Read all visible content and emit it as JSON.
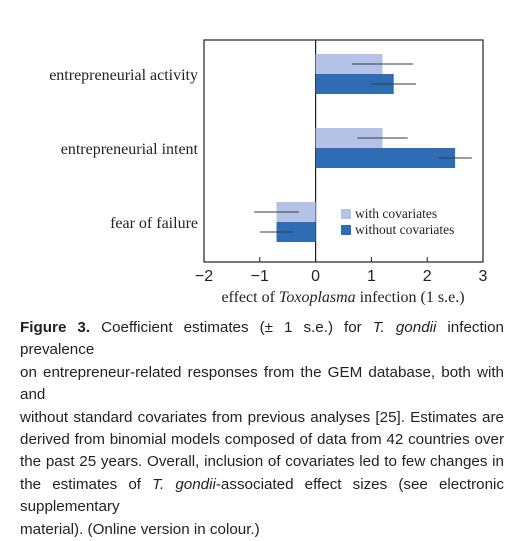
{
  "chart_data": {
    "type": "bar",
    "orientation": "horizontal",
    "categories": [
      "entrepreneurial activity",
      "entrepreneurial intent",
      "fear of failure"
    ],
    "series": [
      {
        "name": "with covariates",
        "color": "#b3c2e6",
        "values": [
          1.2,
          1.2,
          -0.7
        ],
        "error": [
          0.55,
          0.45,
          0.4
        ]
      },
      {
        "name": "without covariates",
        "color": "#2e6db4",
        "values": [
          1.4,
          2.5,
          -0.7
        ],
        "error": [
          0.4,
          0.3,
          0.3
        ]
      }
    ],
    "xlim": [
      -2,
      3
    ],
    "xticks": [
      "−2",
      "−1",
      "0",
      "1",
      "2",
      "3"
    ],
    "xtick_values": [
      -2,
      -1,
      0,
      1,
      2,
      3
    ],
    "xlabel": {
      "prefix": "effect of ",
      "italic": "Toxoplasma",
      "suffix": " infection (1 s.e.)"
    },
    "legend_position": "lower-right",
    "grid": false
  },
  "caption": {
    "label": "Figure 3.",
    "lines": [
      [
        {
          "t": "Figure 3.",
          "s": "b"
        },
        {
          "t": " Coefficient estimates (± 1 s.e.) for "
        },
        {
          "t": "T. gondii",
          "s": "i"
        },
        {
          "t": " infection prevalence"
        }
      ],
      [
        {
          "t": "on entrepreneur-related responses from the GEM database, both with and"
        }
      ],
      [
        {
          "t": "without standard covariates from previous analyses [25]. Estimates are"
        }
      ],
      [
        {
          "t": "derived from binomial models composed of data from 42 countries over"
        }
      ],
      [
        {
          "t": "the past 25 years. Overall, inclusion of covariates led to few changes in"
        }
      ],
      [
        {
          "t": "the estimates of "
        },
        {
          "t": "T. gondii",
          "s": "i"
        },
        {
          "t": "-associated effect sizes (see electronic supplementary"
        }
      ],
      [
        {
          "t": "material). (Online version in colour.)"
        }
      ]
    ]
  }
}
